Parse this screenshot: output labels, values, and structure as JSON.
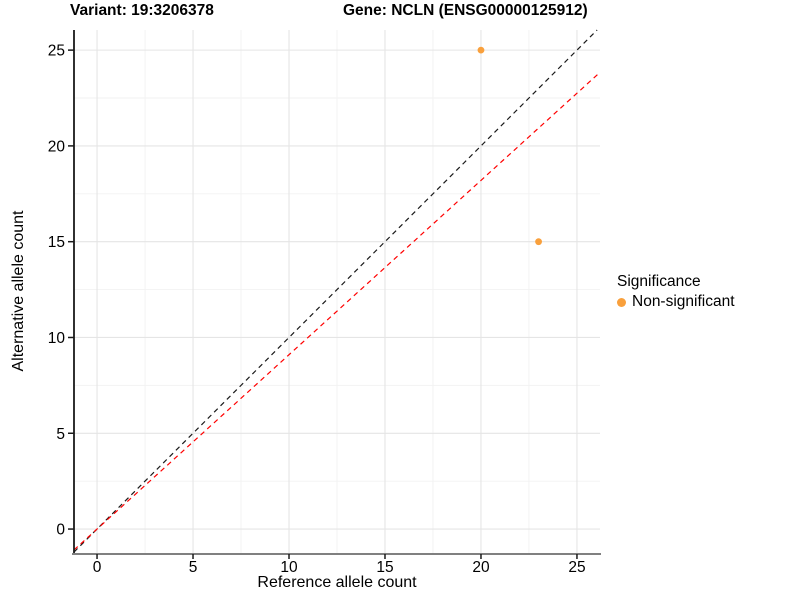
{
  "titles": {
    "variant": "Variant: 19:3206378",
    "gene": "Gene: NCLN (ENSG00000125912)"
  },
  "legend": {
    "title": "Significance",
    "items": [
      {
        "label": "Non-significant",
        "color": "#F9A03C"
      }
    ]
  },
  "colors": {
    "point": "#F9A03C",
    "identity_line": "#1A1A1A",
    "ratio_line": "#FF0000",
    "grid_major": "#E5E5E5",
    "grid_minor": "#F2F2F2",
    "axis_left": "#1A1A1A",
    "axis_bottom": "#808080",
    "tick": "#1A1A1A",
    "text": "#000000"
  },
  "chart_data": {
    "type": "scatter",
    "title_left": "Variant: 19:3206378",
    "title_right": "Gene: NCLN (ENSG00000125912)",
    "xlabel": "Reference allele count",
    "ylabel": "Alternative allele count",
    "xlim": [
      -1.2,
      26.2
    ],
    "ylim": [
      -1.25,
      26.05
    ],
    "x_ticks": [
      0,
      5,
      10,
      15,
      20,
      25
    ],
    "y_ticks": [
      0,
      5,
      10,
      15,
      20,
      25
    ],
    "x_minor_ticks": [
      2.5,
      7.5,
      12.5,
      17.5,
      22.5
    ],
    "y_minor_ticks": [
      2.5,
      7.5,
      12.5,
      17.5,
      22.5
    ],
    "grid": true,
    "legend_position": "right",
    "legend_title": "Significance",
    "series": [
      {
        "name": "Non-significant",
        "color": "#F9A03C",
        "points": [
          {
            "x": 20,
            "y": 25
          },
          {
            "x": 23,
            "y": 15
          }
        ]
      }
    ],
    "reference_lines": [
      {
        "name": "identity",
        "slope": 1.0,
        "intercept": 0,
        "color": "#1A1A1A",
        "style": "dashed"
      },
      {
        "name": "expected-ratio",
        "slope": 0.91,
        "intercept": 0,
        "color": "#FF0000",
        "style": "dashed"
      }
    ]
  }
}
